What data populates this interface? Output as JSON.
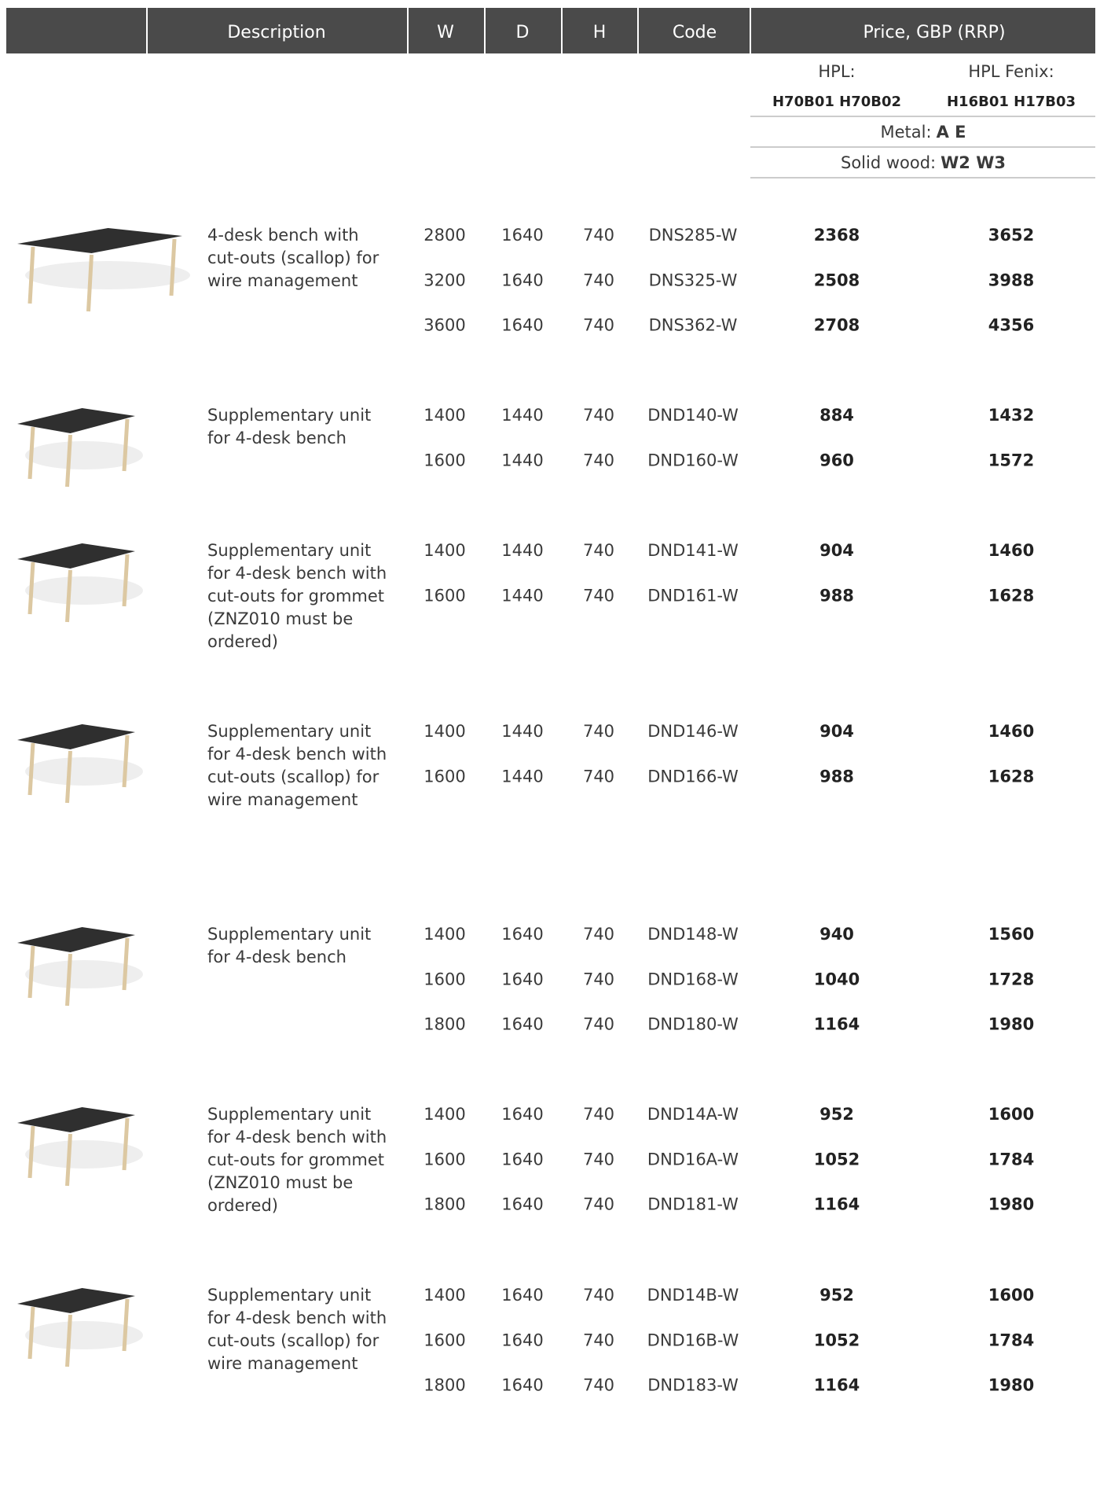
{
  "header": {
    "columns": [
      "Description",
      "W",
      "D",
      "H",
      "Code",
      "Price, GBP (RRP)"
    ]
  },
  "price_header": {
    "hpl": "HPL:",
    "hpl_codes": "H70B01  H70B02",
    "fenix": "HPL Fenix:",
    "fenix_codes": "H16B01  H17B03",
    "metal_label": "Metal:",
    "metal_codes": "A  E",
    "wood_label": "Solid wood:",
    "wood_codes": "W2  W3"
  },
  "groups": [
    {
      "description": [
        "4-desk bench with",
        "cut-outs (scallop) for",
        "wire management"
      ],
      "rows": [
        [
          2800,
          1640,
          740,
          "DNS285-W",
          2368,
          3652
        ],
        [
          3200,
          1640,
          740,
          "DNS325-W",
          2508,
          3988
        ],
        [
          3600,
          1640,
          740,
          "DNS362-W",
          2708,
          4356
        ]
      ]
    },
    {
      "description": [
        "Supplementary unit",
        "for 4-desk bench"
      ],
      "rows": [
        [
          1400,
          1440,
          740,
          "DND140-W",
          884,
          1432
        ],
        [
          1600,
          1440,
          740,
          "DND160-W",
          960,
          1572
        ]
      ]
    },
    {
      "description": [
        "Supplementary unit",
        "for 4-desk bench with",
        "cut-outs for grommet",
        "(ZNZ010 must be",
        "ordered)"
      ],
      "rows": [
        [
          1400,
          1440,
          740,
          "DND141-W",
          904,
          1460
        ],
        [
          1600,
          1440,
          740,
          "DND161-W",
          988,
          1628
        ]
      ]
    },
    {
      "description": [
        "Supplementary unit",
        "for 4-desk bench with",
        "cut-outs (scallop) for",
        "wire management"
      ],
      "rows": [
        [
          1400,
          1440,
          740,
          "DND146-W",
          904,
          1460
        ],
        [
          1600,
          1440,
          740,
          "DND166-W",
          988,
          1628
        ]
      ]
    },
    {
      "description": [
        "Supplementary unit",
        "for 4-desk bench"
      ],
      "rows": [
        [
          1400,
          1640,
          740,
          "DND148-W",
          940,
          1560
        ],
        [
          1600,
          1640,
          740,
          "DND168-W",
          1040,
          1728
        ],
        [
          1800,
          1640,
          740,
          "DND180-W",
          1164,
          1980
        ]
      ]
    },
    {
      "description": [
        "Supplementary unit",
        "for 4-desk bench with",
        "cut-outs for grommet",
        "(ZNZ010 must be",
        "ordered)"
      ],
      "rows": [
        [
          1400,
          1640,
          740,
          "DND14A-W",
          952,
          1600
        ],
        [
          1600,
          1640,
          740,
          "DND16A-W",
          1052,
          1784
        ],
        [
          1800,
          1640,
          740,
          "DND181-W",
          1164,
          1980
        ]
      ]
    },
    {
      "description": [
        "Supplementary unit",
        "for 4-desk bench with",
        "cut-outs (scallop) for",
        "wire management"
      ],
      "rows": [
        [
          1400,
          1640,
          740,
          "DND14B-W",
          952,
          1600
        ],
        [
          1600,
          1640,
          740,
          "DND16B-W",
          1052,
          1784
        ],
        [
          1800,
          1640,
          740,
          "DND183-W",
          1164,
          1980
        ]
      ]
    }
  ]
}
